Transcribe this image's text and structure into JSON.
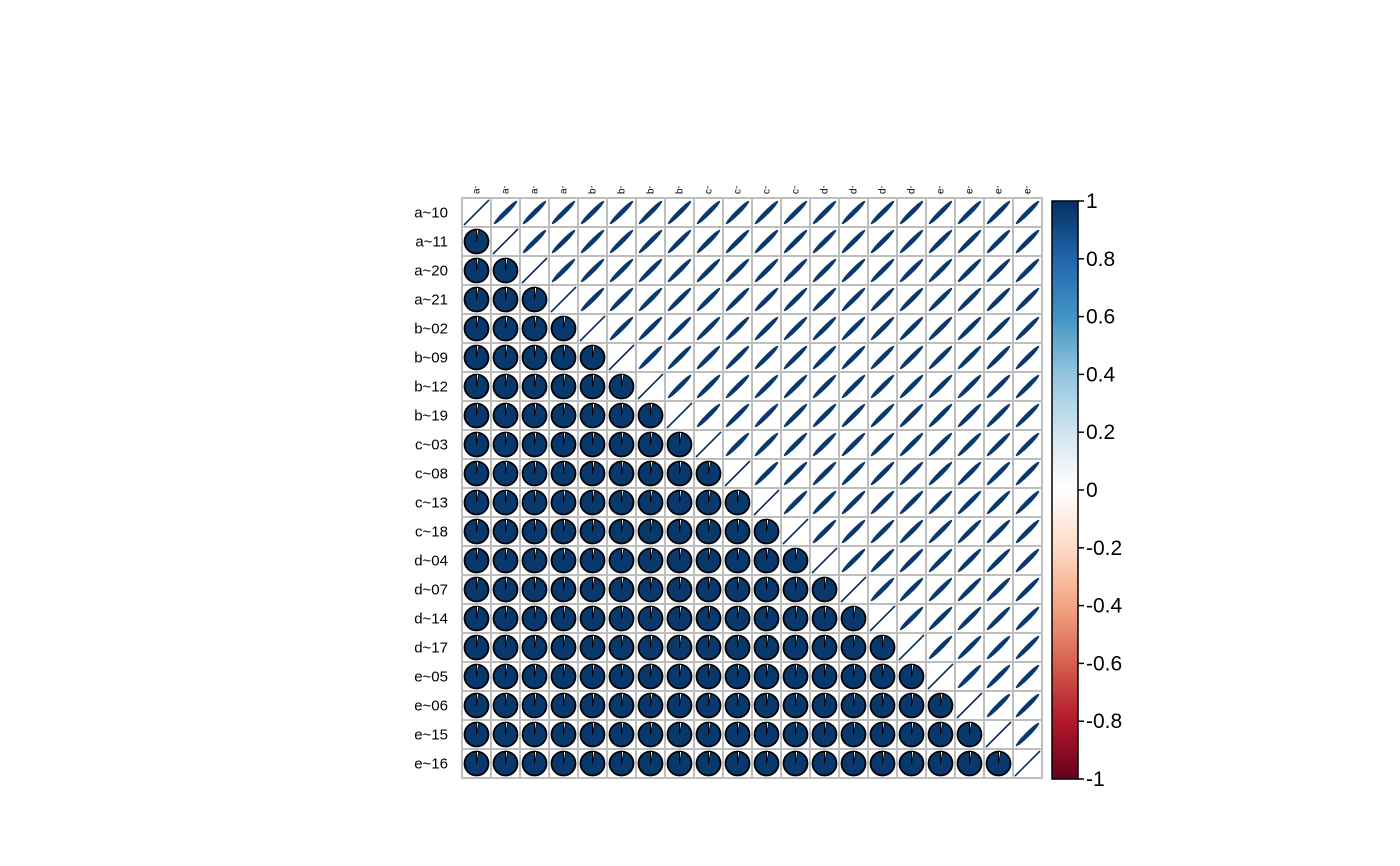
{
  "chart_data": {
    "type": "heatmap",
    "method_lower": "pie",
    "method_upper": "ellipse",
    "variables": [
      "a~10",
      "a~11",
      "a~20",
      "a~21",
      "b~02",
      "b~09",
      "b~12",
      "b~19",
      "c~03",
      "c~08",
      "c~13",
      "c~18",
      "d~04",
      "d~07",
      "d~14",
      "d~17",
      "e~05",
      "e~06",
      "e~15",
      "e~16"
    ],
    "correlation_range": [
      -1,
      1
    ],
    "diagonal_value": 1,
    "approx_off_diagonal_value": 0.97,
    "colorbar": {
      "ticks": [
        "1",
        "0.8",
        "0.6",
        "0.4",
        "0.2",
        "0",
        "-0.2",
        "-0.4",
        "-0.6",
        "-0.8",
        "-1"
      ],
      "tick_values": [
        1,
        0.8,
        0.6,
        0.4,
        0.2,
        0,
        -0.2,
        -0.4,
        -0.6,
        -0.8,
        -1
      ],
      "colors": [
        "#67001F",
        "#B2182B",
        "#D6604D",
        "#F4A582",
        "#FDDBC7",
        "#FFFFFF",
        "#D1E5F0",
        "#92C5DE",
        "#4393C3",
        "#2166AC",
        "#053061"
      ]
    },
    "grid_color": "#BEBEBE"
  }
}
